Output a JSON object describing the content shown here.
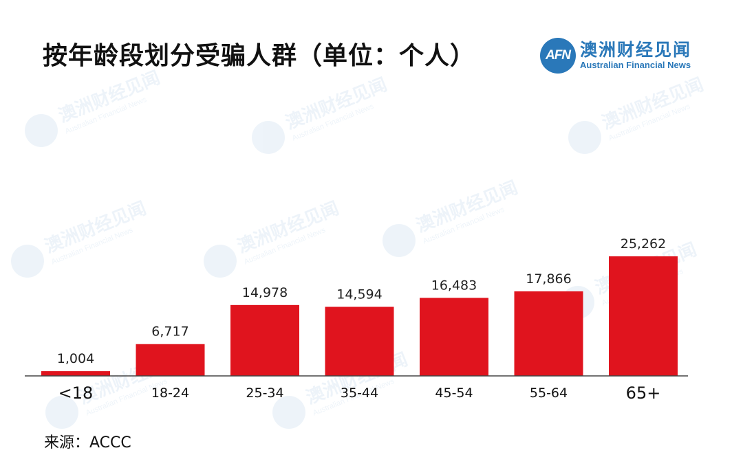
{
  "title": "按年龄段划分受骗人群（单位：个人）",
  "logo": {
    "mark": "AFN",
    "name_cn": "澳洲财经见闻",
    "name_en": "Australian Financial News",
    "color": "#2a78b9"
  },
  "source": "来源：ACCC",
  "chart_data": {
    "type": "bar",
    "categories": [
      "<18",
      "18-24",
      "25-34",
      "35-44",
      "45-54",
      "55-64",
      "65+"
    ],
    "values": [
      1004,
      6717,
      14978,
      14594,
      16483,
      17866,
      25262
    ],
    "value_labels": [
      "1,004",
      "6,717",
      "14,978",
      "14,594",
      "16,483",
      "17,866",
      "25,262"
    ],
    "title": "按年龄段划分受骗人群（单位：个人）",
    "xlabel": "",
    "ylabel": "",
    "ylim": [
      0,
      25262
    ],
    "grid": false,
    "bar_color": "#e0141e"
  }
}
